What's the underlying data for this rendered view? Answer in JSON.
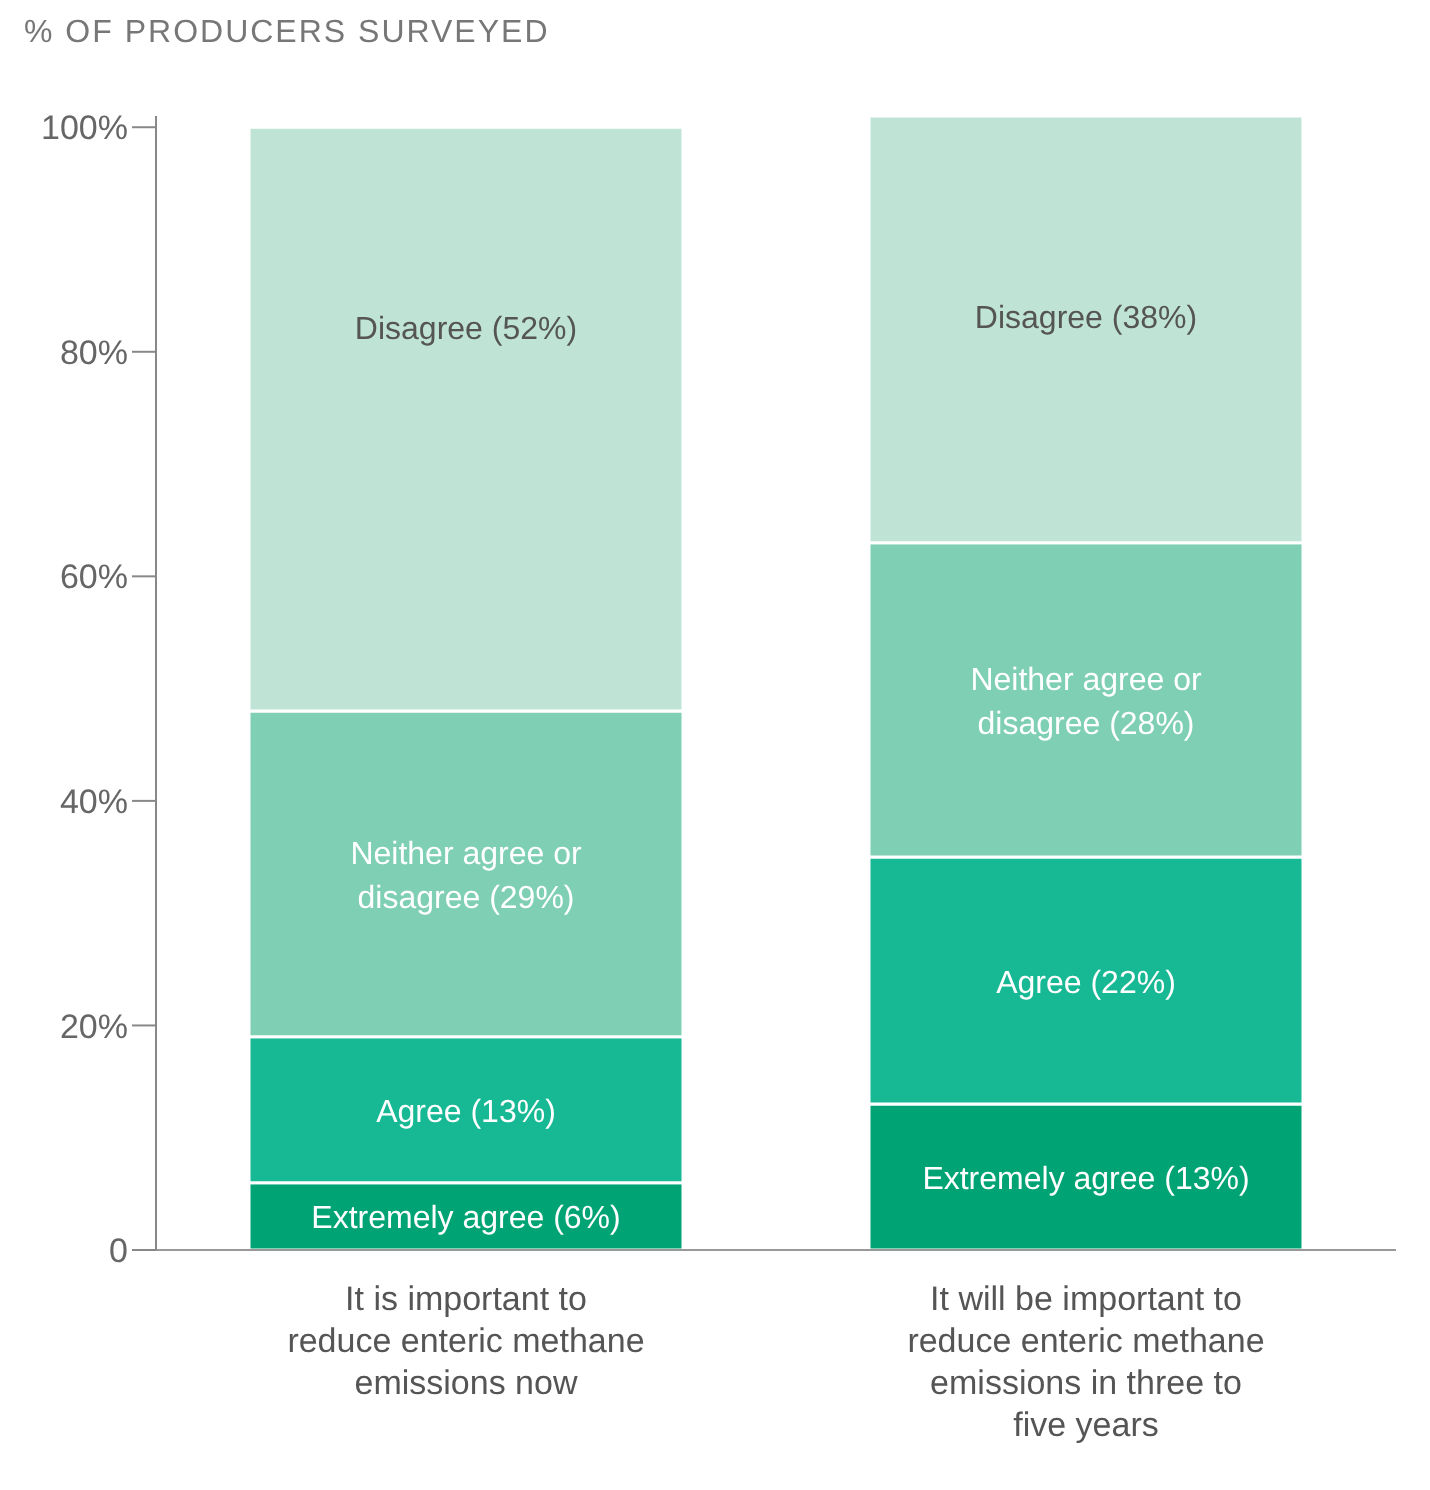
{
  "chart_data": {
    "type": "bar",
    "stacked": true,
    "ylabel": "% OF PRODUCERS SURVEYED",
    "categories": [
      "It is important to reduce enteric methane emissions now",
      "It will be important to reduce enteric methane emissions in three to five years"
    ],
    "series": [
      {
        "color": "#00a474",
        "values": [
          6,
          13
        ],
        "value_labels": [
          "Extremely agree (6%)",
          "Extremely agree (13%)"
        ]
      },
      {
        "color": "#17b894",
        "values": [
          13,
          22
        ],
        "value_labels": [
          "Agree (13%)",
          "Agree (22%)"
        ]
      },
      {
        "color": "#7ecfb3",
        "values": [
          29,
          28
        ],
        "value_labels": [
          "Neither agree or disagree (29%)",
          "Neither agree or disagree (28%)"
        ]
      },
      {
        "color": "#bfe4d6",
        "values": [
          52,
          38
        ],
        "value_labels": [
          "Disagree (52%)",
          "Disagree (38%)"
        ]
      }
    ],
    "ylim": [
      0,
      101
    ],
    "yticks": [
      {
        "value": 0,
        "label": "0"
      },
      {
        "value": 20,
        "label": "20%"
      },
      {
        "value": 40,
        "label": "40%"
      },
      {
        "value": 60,
        "label": "60%"
      },
      {
        "value": 80,
        "label": "80%"
      },
      {
        "value": 100,
        "label": "100%"
      }
    ],
    "grid": false,
    "legend": false
  }
}
